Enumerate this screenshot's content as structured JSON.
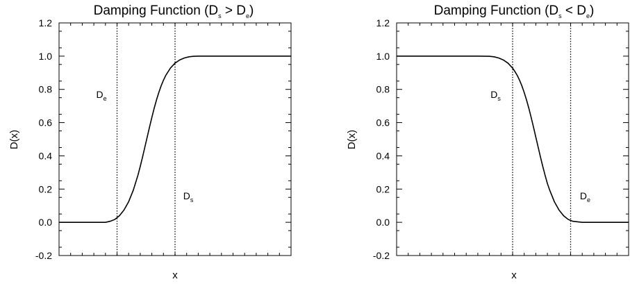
{
  "chart_data": [
    {
      "type": "line",
      "title_main": "Damping Function (D",
      "title_sub1": "s",
      "title_op": " > D",
      "title_sub2": "e",
      "title_close": ")",
      "xlabel": "x",
      "ylabel": "D(x)",
      "ylim": [
        -0.2,
        1.2
      ],
      "yticks": [
        "1.2",
        "1.0",
        "0.8",
        "0.6",
        "0.4",
        "0.2",
        "0.0",
        "-0.2"
      ],
      "ytick_values": [
        1.2,
        1.0,
        0.8,
        0.6,
        0.4,
        0.2,
        0.0,
        -0.2
      ],
      "xlim": [
        0,
        1
      ],
      "minor_x_ticks": 19,
      "series": [
        {
          "x": [
            0.0,
            0.2,
            0.22,
            0.24,
            0.26,
            0.28,
            0.3,
            0.32,
            0.34,
            0.35,
            0.36,
            0.37,
            0.38,
            0.39,
            0.4,
            0.41,
            0.42,
            0.43,
            0.44,
            0.45,
            0.46,
            0.48,
            0.5,
            0.52,
            0.54,
            0.56,
            0.58,
            0.6,
            0.65,
            0.7,
            1.0
          ],
          "y": [
            0.0,
            0.0,
            0.006,
            0.017,
            0.039,
            0.074,
            0.124,
            0.193,
            0.283,
            0.336,
            0.393,
            0.453,
            0.513,
            0.573,
            0.631,
            0.686,
            0.736,
            0.781,
            0.821,
            0.855,
            0.884,
            0.928,
            0.958,
            0.977,
            0.989,
            0.996,
            0.999,
            1.0,
            1.0,
            1.0,
            1.0
          ]
        }
      ],
      "vlines": [
        {
          "x": 0.25,
          "label_main": "D",
          "label_sub": "e",
          "label_x": 0.16,
          "label_y": 0.77
        },
        {
          "x": 0.5,
          "label_main": "D",
          "label_sub": "s",
          "label_x": 0.535,
          "label_y": 0.16
        }
      ]
    },
    {
      "type": "line",
      "title_main": "Damping Function (D",
      "title_sub1": "s",
      "title_op": " < D",
      "title_sub2": "e",
      "title_close": ")",
      "xlabel": "x",
      "ylabel": "D(x)",
      "ylim": [
        -0.2,
        1.2
      ],
      "yticks": [
        "1.2",
        "1.0",
        "0.8",
        "0.6",
        "0.4",
        "0.2",
        "0.0",
        "-0.2"
      ],
      "ytick_values": [
        1.2,
        1.0,
        0.8,
        0.6,
        0.4,
        0.2,
        0.0,
        -0.2
      ],
      "xlim": [
        0,
        1
      ],
      "minor_x_ticks": 19,
      "series": [
        {
          "x": [
            0.0,
            0.3,
            0.35,
            0.4,
            0.42,
            0.44,
            0.46,
            0.48,
            0.5,
            0.51,
            0.52,
            0.53,
            0.54,
            0.55,
            0.56,
            0.57,
            0.58,
            0.59,
            0.6,
            0.61,
            0.62,
            0.63,
            0.64,
            0.65,
            0.66,
            0.68,
            0.7,
            0.72,
            0.74,
            0.76,
            0.8,
            1.0
          ],
          "y": [
            1.0,
            1.0,
            1.0,
            0.999,
            0.996,
            0.989,
            0.977,
            0.958,
            0.928,
            0.907,
            0.884,
            0.855,
            0.821,
            0.781,
            0.736,
            0.686,
            0.631,
            0.573,
            0.513,
            0.453,
            0.393,
            0.336,
            0.283,
            0.233,
            0.193,
            0.124,
            0.074,
            0.039,
            0.017,
            0.006,
            0.0,
            0.0
          ]
        }
      ],
      "vlines": [
        {
          "x": 0.5,
          "label_main": "D",
          "label_sub": "s",
          "label_x": 0.405,
          "label_y": 0.77
        },
        {
          "x": 0.75,
          "label_main": "D",
          "label_sub": "e",
          "label_x": 0.79,
          "label_y": 0.16
        }
      ]
    }
  ]
}
